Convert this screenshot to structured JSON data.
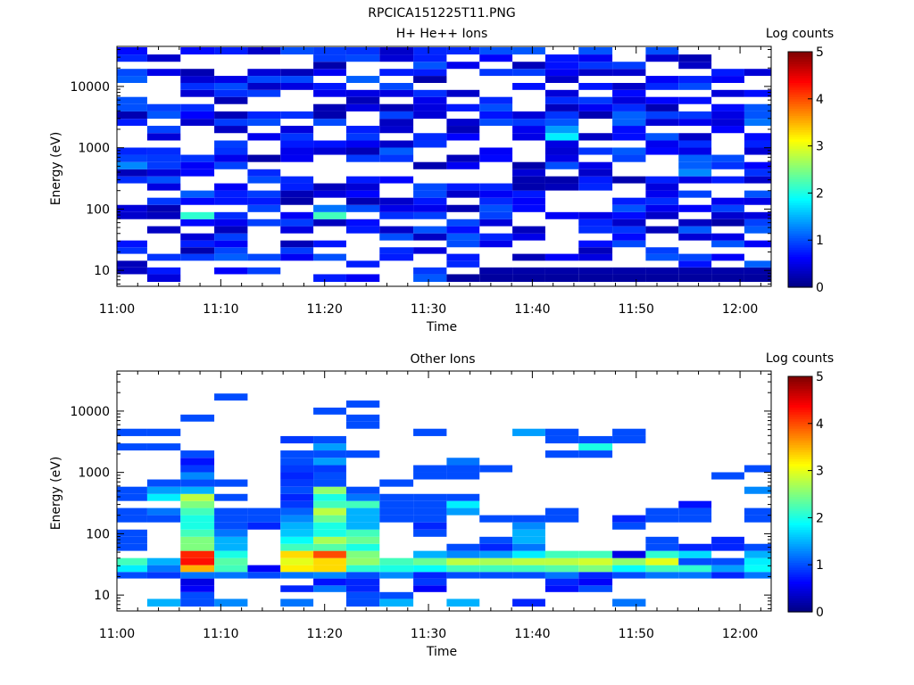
{
  "figure_title": "RPCICA151225T11.PNG",
  "colorbar_palette": [
    "#00007f",
    "#0000ff",
    "#007fff",
    "#00ffff",
    "#7fff7f",
    "#ffff00",
    "#ff7f00",
    "#ff0000",
    "#7f0000"
  ],
  "chart_data": [
    {
      "type": "heatmap",
      "title": "H+ He++ Ions",
      "xlabel": "Time",
      "ylabel": "Energy (eV)",
      "colorbar_label": "Log counts",
      "colorbar_range": [
        0,
        5
      ],
      "colorbar_ticks": [
        "0",
        "1",
        "2",
        "3",
        "4",
        "5"
      ],
      "y_scale": "log",
      "ylim": [
        5.5,
        45000
      ],
      "y_ticks": [
        {
          "value": 10,
          "label": "10"
        },
        {
          "value": 100,
          "label": "100"
        },
        {
          "value": 1000,
          "label": "1000"
        },
        {
          "value": 10000,
          "label": "10000"
        }
      ],
      "xlim": [
        "11:00",
        "12:03"
      ],
      "x_ticks": [
        {
          "time": "11:00",
          "label": "11:00"
        },
        {
          "time": "11:10",
          "label": "11:10"
        },
        {
          "time": "11:20",
          "label": "11:20"
        },
        {
          "time": "11:30",
          "label": "11:30"
        },
        {
          "time": "11:40",
          "label": "11:40"
        },
        {
          "time": "11:50",
          "label": "11:50"
        },
        {
          "time": "12:00",
          "label": "12:00"
        }
      ],
      "time_bins": [
        "11:01:20",
        "11:04:30",
        "11:07:45",
        "11:11:00",
        "11:14:10",
        "11:17:20",
        "11:20:30",
        "11:23:40",
        "11:26:55",
        "11:30:10",
        "11:33:20",
        "11:36:30",
        "11:39:40",
        "11:42:50",
        "11:46:05",
        "11:49:20",
        "11:52:30",
        "11:55:40",
        "11:58:50",
        "12:02:00"
      ],
      "energy_bins_eV": [
        7.5,
        10,
        12.5,
        16.5,
        21,
        27,
        35,
        46,
        60,
        78,
        102,
        134,
        175,
        230,
        300,
        390,
        510,
        670,
        880,
        1150,
        1500,
        2000,
        2600,
        3400,
        4500,
        5900,
        7700,
        10000,
        13000,
        17000,
        22000,
        29000,
        38000
      ],
      "grid": false,
      "legend": "none"
    },
    {
      "type": "heatmap",
      "title": "Other Ions",
      "xlabel": "Time",
      "ylabel": "Energy (eV)",
      "colorbar_label": "Log counts",
      "colorbar_range": [
        0,
        5
      ],
      "colorbar_ticks": [
        "0",
        "1",
        "2",
        "3",
        "4",
        "5"
      ],
      "y_scale": "log",
      "ylim": [
        5.5,
        45000
      ],
      "y_ticks": [
        {
          "value": 10,
          "label": "10"
        },
        {
          "value": 100,
          "label": "100"
        },
        {
          "value": 1000,
          "label": "1000"
        },
        {
          "value": 10000,
          "label": "10000"
        }
      ],
      "xlim": [
        "11:00",
        "12:03"
      ],
      "x_ticks": [
        {
          "time": "11:00",
          "label": "11:00"
        },
        {
          "time": "11:10",
          "label": "11:10"
        },
        {
          "time": "11:20",
          "label": "11:20"
        },
        {
          "time": "11:30",
          "label": "11:30"
        },
        {
          "time": "11:40",
          "label": "11:40"
        },
        {
          "time": "11:50",
          "label": "11:50"
        },
        {
          "time": "12:00",
          "label": "12:00"
        }
      ],
      "time_bins": [
        "11:01:20",
        "11:04:30",
        "11:07:45",
        "11:11:00",
        "11:14:10",
        "11:17:20",
        "11:20:30",
        "11:23:40",
        "11:26:55",
        "11:30:10",
        "11:33:20",
        "11:36:30",
        "11:39:40",
        "11:42:50",
        "11:46:05",
        "11:49:20",
        "11:52:30",
        "11:55:40",
        "11:58:50",
        "12:02:00"
      ],
      "energy_bins_eV": [
        7.5,
        10,
        12.5,
        16.5,
        21,
        27,
        35,
        46,
        60,
        78,
        102,
        134,
        175,
        230,
        300,
        390,
        510,
        670,
        880,
        1150,
        1500,
        2000,
        2600,
        3400,
        4500,
        5900,
        7700,
        10000,
        13000,
        17000,
        22000,
        29000,
        38000
      ],
      "log_counts": [
        [
          0,
          1.5,
          1.0,
          1.3,
          0,
          1.2,
          0,
          1.0,
          1.5,
          0,
          1.5,
          0,
          0.8,
          0,
          0,
          1.2,
          0,
          0,
          0,
          0
        ],
        [
          0,
          0,
          1.0,
          0,
          0,
          0,
          0,
          1.0,
          1.0,
          0,
          0,
          0,
          0,
          0,
          0,
          0,
          0,
          0,
          0,
          0
        ],
        [
          0,
          0,
          0.6,
          0,
          0,
          0.8,
          1.2,
          0.8,
          0,
          0.6,
          0,
          0,
          0,
          0.7,
          1.0,
          0,
          0,
          0,
          0,
          0
        ],
        [
          0,
          0,
          0.5,
          0,
          0,
          0,
          0.7,
          0.8,
          0,
          0.9,
          0,
          0,
          0,
          0.8,
          0.6,
          0,
          0,
          0,
          0,
          0
        ],
        [
          1.0,
          0.9,
          1.2,
          1.2,
          1.0,
          1.2,
          1.3,
          1.0,
          1.3,
          0.8,
          1.0,
          1.0,
          1.0,
          1.2,
          0.8,
          1.0,
          1.2,
          1.2,
          0.8,
          1.2
        ],
        [
          1.8,
          1.2,
          3.5,
          2.2,
          0.6,
          3.2,
          3.3,
          2.1,
          2.0,
          1.9,
          2.2,
          2.2,
          2.2,
          2.3,
          2.5,
          1.9,
          2.2,
          2.1,
          1.4,
          1.9
        ],
        [
          2.2,
          1.5,
          4.3,
          2.3,
          0,
          3.0,
          3.3,
          2.6,
          2.2,
          2.4,
          2.8,
          2.7,
          2.8,
          2.8,
          2.9,
          2.6,
          3.0,
          1.0,
          1.0,
          1.8
        ],
        [
          0,
          0,
          4.2,
          2.0,
          0,
          3.3,
          4.0,
          2.5,
          0,
          1.5,
          1.3,
          1.4,
          1.8,
          2.2,
          2.2,
          0.5,
          2.1,
          1.7,
          0,
          1.5
        ],
        [
          1.0,
          0,
          2.5,
          1.5,
          0,
          2.2,
          2.3,
          2.0,
          0,
          0,
          1.0,
          0.8,
          1.2,
          0,
          0,
          0,
          1.0,
          0.8,
          0.8,
          1.0
        ],
        [
          1.0,
          0,
          2.5,
          1.5,
          0,
          1.9,
          2.7,
          2.4,
          0,
          0,
          0,
          1.0,
          1.5,
          0,
          0,
          0,
          1.0,
          0,
          0.8,
          0
        ],
        [
          1.0,
          0,
          2.2,
          1.2,
          0,
          1.6,
          2.0,
          2.2,
          0,
          1.0,
          0,
          0,
          1.5,
          0,
          0,
          0,
          0,
          0,
          0,
          0
        ],
        [
          0,
          0,
          2.0,
          1.0,
          0.8,
          1.5,
          2.0,
          1.5,
          0,
          0.8,
          0,
          0,
          1.3,
          0,
          0,
          1.0,
          0,
          0,
          0,
          0
        ],
        [
          1.0,
          1.0,
          2.0,
          1.0,
          1.0,
          1.3,
          2.4,
          1.5,
          1.0,
          1.0,
          0,
          1.0,
          1.0,
          1.0,
          0,
          0.8,
          1.0,
          1.0,
          0,
          1.0
        ],
        [
          1.0,
          1.2,
          2.2,
          1.0,
          1.0,
          1.1,
          2.8,
          1.5,
          1.0,
          1.0,
          1.4,
          0,
          0,
          1.0,
          0,
          0,
          1.0,
          1.0,
          0,
          1.0
        ],
        [
          0,
          0,
          2.5,
          0,
          0,
          0.9,
          2.2,
          2.2,
          1.0,
          1.0,
          1.8,
          0,
          0,
          0,
          0,
          0,
          0,
          0.7,
          0,
          0
        ],
        [
          1.0,
          1.8,
          2.8,
          1.0,
          0,
          0.8,
          2.0,
          1.2,
          1.0,
          1.0,
          1.0,
          0,
          0,
          0,
          0,
          0,
          0,
          0,
          0,
          0
        ],
        [
          1.0,
          1.4,
          1.5,
          0,
          0,
          1.0,
          2.6,
          1.0,
          0,
          0,
          0,
          0,
          0,
          0,
          0,
          0,
          0,
          0,
          0,
          1.3
        ],
        [
          0,
          1.0,
          1.0,
          1.0,
          0,
          0.9,
          1.0,
          0,
          1.0,
          0,
          0,
          0,
          0,
          0,
          0,
          0,
          0,
          0,
          0,
          0
        ],
        [
          0,
          0,
          1.3,
          0,
          0,
          0.8,
          1.0,
          0,
          0,
          1.0,
          1.0,
          0,
          0,
          0,
          0,
          0,
          0,
          0,
          1.0,
          0
        ],
        [
          0,
          0,
          0.9,
          0,
          0,
          0.9,
          0.9,
          0,
          0,
          1.0,
          1.0,
          1.0,
          0,
          0,
          0,
          0,
          0,
          0,
          0,
          1.0
        ],
        [
          0,
          0,
          0.7,
          0,
          0,
          1.0,
          1.4,
          0,
          0,
          0,
          1.2,
          0,
          0,
          0,
          0,
          0,
          0,
          0,
          0,
          0
        ],
        [
          0,
          0,
          1.0,
          0,
          0,
          1.0,
          1.0,
          1.0,
          0,
          0,
          0,
          0,
          0,
          1.0,
          1.0,
          0,
          0,
          0,
          0,
          0
        ],
        [
          1.0,
          1.0,
          0,
          0,
          0,
          0,
          1.4,
          0,
          0,
          0,
          0,
          0,
          0,
          0,
          2.0,
          0,
          0,
          0,
          0,
          0
        ],
        [
          0,
          0,
          0,
          0,
          0,
          0.9,
          1.0,
          0,
          0,
          0,
          0,
          0,
          0,
          1.0,
          1.0,
          1.0,
          0,
          0,
          0,
          0
        ],
        [
          1.0,
          1.0,
          0,
          0,
          0,
          0,
          0,
          0,
          0,
          1.0,
          0,
          0,
          1.4,
          1.0,
          0,
          1.0,
          0,
          0,
          0,
          0
        ],
        [
          0,
          0,
          0,
          0,
          0,
          0,
          0,
          1.0,
          0,
          0,
          0,
          0,
          0,
          0,
          0,
          0,
          0,
          0,
          0,
          0
        ],
        [
          0,
          0,
          1.0,
          0,
          0,
          0,
          0,
          1.0,
          0,
          0,
          0,
          0,
          0,
          0,
          0,
          0,
          0,
          0,
          0,
          0
        ],
        [
          0,
          0,
          0,
          0,
          0,
          0,
          1.0,
          0,
          0,
          0,
          0,
          0,
          0,
          0,
          0,
          0,
          0,
          0,
          0,
          0
        ],
        [
          0,
          0,
          0,
          0,
          0,
          0,
          0,
          1.0,
          0,
          0,
          0,
          0,
          0,
          0,
          0,
          0,
          0,
          0,
          0,
          0
        ],
        [
          0,
          0,
          0,
          1.0,
          0,
          0,
          0,
          0,
          0,
          0,
          0,
          0,
          0,
          0,
          0,
          0,
          0,
          0,
          0,
          0
        ],
        [
          0,
          0,
          0,
          0,
          0,
          0,
          0,
          0,
          0,
          0,
          0,
          0,
          0,
          0,
          0,
          0,
          0,
          0,
          0,
          0
        ],
        [
          0,
          0,
          0,
          0,
          0,
          0,
          0,
          0,
          0,
          0,
          0,
          0,
          0,
          0,
          0,
          0,
          0,
          0,
          0,
          0
        ],
        [
          0,
          0,
          0,
          0,
          0,
          0,
          0,
          0,
          0,
          0,
          0,
          0,
          0,
          0,
          0,
          0,
          0,
          0,
          0,
          0
        ]
      ],
      "grid": false,
      "legend": "none"
    }
  ]
}
